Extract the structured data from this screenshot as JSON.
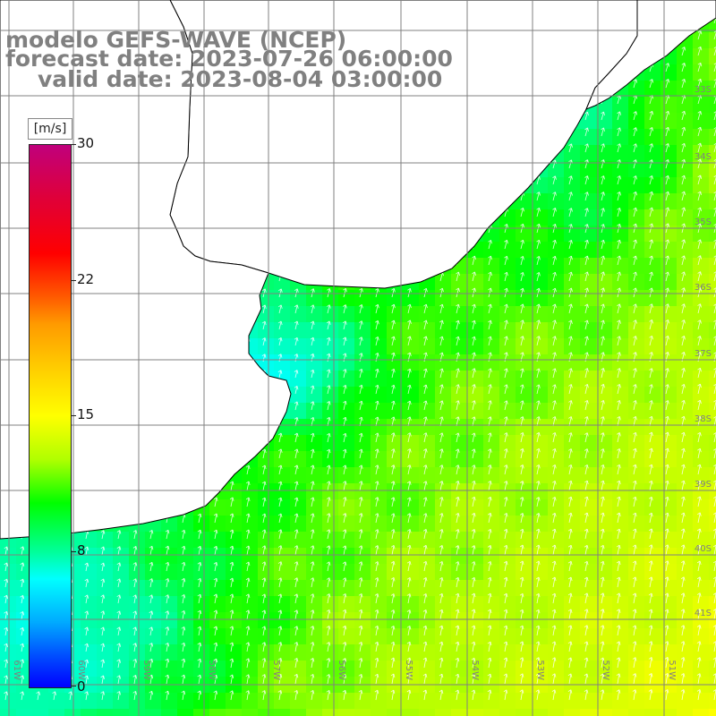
{
  "title": {
    "model": "modelo GEFS-WAVE (NCEP)",
    "forecast": "forecast date: 2023-07-26 06:00:00",
    "valid": "valid date: 2023-08-04 03:00:00"
  },
  "colorbar": {
    "unit": "[m/s]",
    "ticks": [
      "30",
      "22",
      "15",
      "8",
      "0"
    ],
    "range": [
      0,
      30
    ]
  },
  "map": {
    "lat_labels": [
      "33S",
      "34S",
      "35S",
      "36S",
      "37S",
      "38S",
      "39S",
      "40S",
      "41S"
    ],
    "lon_labels": [
      "61W",
      "60W",
      "59W",
      "58W",
      "57W",
      "56W",
      "55W",
      "54W",
      "53W",
      "52W",
      "51W"
    ],
    "land_color": "#ffffff",
    "coast_color": "#000000",
    "grid_color": "#808080",
    "arrow_color": "#ffffff"
  }
}
